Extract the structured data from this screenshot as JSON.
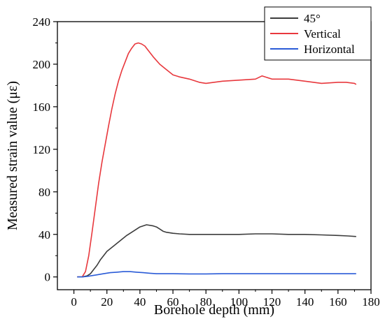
{
  "chart_data": {
    "type": "line",
    "title": "",
    "xlabel": "Borehole depth (mm)",
    "ylabel": "Measured strain value (με)",
    "xlim": [
      -10,
      180
    ],
    "ylim": [
      -12,
      240
    ],
    "xticks": [
      0,
      20,
      40,
      60,
      80,
      100,
      120,
      140,
      160,
      180
    ],
    "yticks": [
      0,
      40,
      80,
      120,
      160,
      200,
      240
    ],
    "xtick_labels": [
      "0",
      "20",
      "40",
      "60",
      "80",
      "100",
      "120",
      "140",
      "160",
      "180"
    ],
    "ytick_labels": [
      "0",
      "40",
      "80",
      "120",
      "160",
      "200",
      "240"
    ],
    "grid": false,
    "legend_position": "top-right",
    "series": [
      {
        "name": "45°",
        "color": "#3c3c3c",
        "x": [
          2,
          5,
          8,
          10,
          12,
          14,
          16,
          18,
          20,
          24,
          28,
          32,
          36,
          40,
          44,
          48,
          50,
          52,
          54,
          56,
          60,
          64,
          70,
          80,
          90,
          100,
          110,
          120,
          130,
          140,
          150,
          160,
          166,
          171
        ],
        "y": [
          0,
          0,
          1,
          3,
          7,
          11,
          16,
          20,
          24,
          29,
          34,
          39,
          43,
          47,
          49,
          48,
          47,
          45,
          43,
          42,
          41,
          40.5,
          40,
          40,
          40,
          40,
          40.5,
          40.5,
          40,
          40,
          39.5,
          39,
          38.5,
          38
        ]
      },
      {
        "name": "Vertical",
        "color": "#e8383d",
        "x": [
          2,
          5,
          7,
          9,
          11,
          13,
          15,
          17,
          19,
          21,
          23,
          25,
          27,
          29,
          31,
          33,
          35,
          37,
          39,
          41,
          43,
          45,
          48,
          52,
          56,
          60,
          64,
          70,
          76,
          80,
          90,
          100,
          110,
          114,
          120,
          130,
          140,
          150,
          160,
          165,
          170,
          171
        ],
        "y": [
          0,
          0,
          5,
          20,
          42,
          65,
          88,
          108,
          125,
          142,
          158,
          172,
          184,
          194,
          202,
          210,
          215,
          219,
          220,
          219,
          217,
          213,
          207,
          200,
          195,
          190,
          188,
          186,
          183,
          182,
          184,
          185,
          186,
          189,
          186,
          186,
          184,
          182,
          183,
          183,
          182,
          181
        ]
      },
      {
        "name": "Horizontal",
        "color": "#2a5bd7",
        "x": [
          2,
          5,
          8,
          10,
          14,
          18,
          22,
          26,
          30,
          34,
          38,
          42,
          46,
          50,
          60,
          70,
          80,
          90,
          100,
          110,
          120,
          130,
          140,
          150,
          160,
          171
        ],
        "y": [
          0,
          0,
          0.5,
          1,
          2,
          3,
          4,
          4.5,
          5,
          5,
          4.5,
          4,
          3.5,
          3,
          3,
          2.8,
          2.8,
          3,
          3,
          3,
          3,
          3,
          3,
          3,
          3,
          3
        ]
      }
    ]
  }
}
